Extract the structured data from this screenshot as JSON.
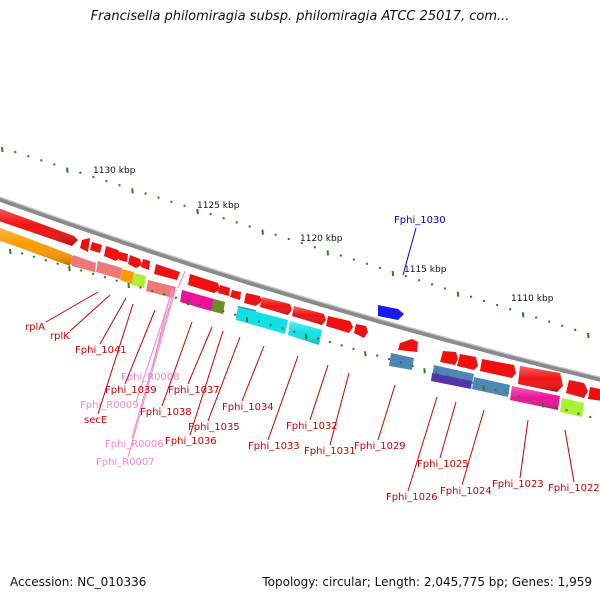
{
  "title": "Francisella philomiragia subsp. philomiragia ATCC 25017, com...",
  "footer": {
    "accession": "Accession: NC_010336",
    "summary": "Topology: circular; Length: 2,045,775 bp; Genes: 1,959"
  },
  "colors": {
    "backbone": "#8a8a8a",
    "gene_red": "#ee1111",
    "gene_blue": "#1a1aee",
    "label_red": "#cc0000",
    "label_pink": "#ee88cc",
    "label_blue": "#0000cc",
    "tick_green": "#2e7d1a",
    "cog_orange": "#ff9900",
    "cog_cyan": "#11e0e8",
    "cog_steelblue": "#4f86b8",
    "cog_magenta": "#ee1199",
    "cog_lime": "#aaf033",
    "cog_olive": "#6b8e23",
    "cog_purple": "#5533aa",
    "cog_salmon": "#ee7777"
  },
  "scale": [
    {
      "label": "1130 kbp"
    },
    {
      "label": "1125 kbp"
    },
    {
      "label": "1120 kbp"
    },
    {
      "label": "1115 kbp"
    },
    {
      "label": "1110 kbp"
    }
  ],
  "genes": [
    {
      "label": "rplA",
      "color": "red"
    },
    {
      "label": "rplK",
      "color": "red"
    },
    {
      "label": "Fphi_1041",
      "color": "red"
    },
    {
      "label": "Fphi_R0008",
      "color": "pink"
    },
    {
      "label": "Fphi_1039",
      "color": "red"
    },
    {
      "label": "Fphi_R0009",
      "color": "pink"
    },
    {
      "label": "secE",
      "color": "red"
    },
    {
      "label": "Fphi_1038",
      "color": "red"
    },
    {
      "label": "Fphi_1037",
      "color": "red"
    },
    {
      "label": "Fphi_R0006",
      "color": "pink"
    },
    {
      "label": "Fphi_1036",
      "color": "red"
    },
    {
      "label": "Fphi_R0007",
      "color": "pink"
    },
    {
      "label": "Fphi_1035",
      "color": "red"
    },
    {
      "label": "Fphi_1034",
      "color": "red"
    },
    {
      "label": "Fphi_1033",
      "color": "red"
    },
    {
      "label": "Fphi_1032",
      "color": "red"
    },
    {
      "label": "Fphi_1031",
      "color": "red"
    },
    {
      "label": "Fphi_1030",
      "color": "blue"
    },
    {
      "label": "Fphi_1029",
      "color": "red"
    },
    {
      "label": "Fphi_1026",
      "color": "red"
    },
    {
      "label": "Fphi_1025",
      "color": "red"
    },
    {
      "label": "Fphi_1024",
      "color": "red"
    },
    {
      "label": "Fphi_1023",
      "color": "red"
    },
    {
      "label": "Fphi_1022",
      "color": "red"
    }
  ]
}
